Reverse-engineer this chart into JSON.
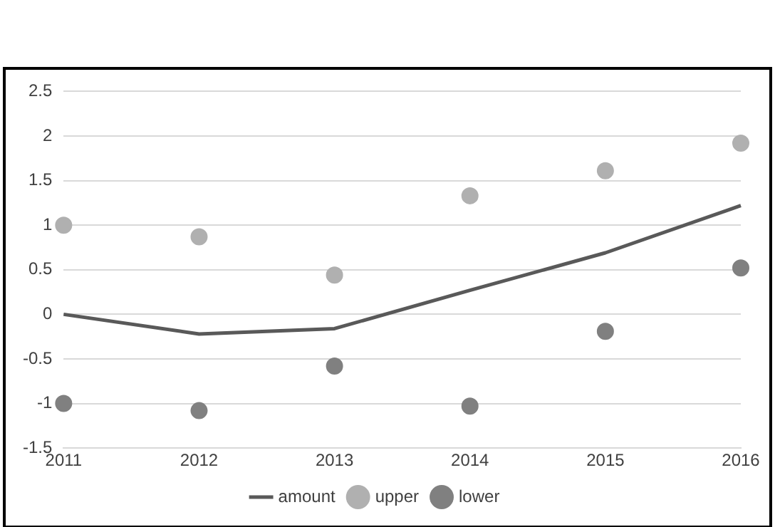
{
  "chart_data": {
    "type": "line",
    "categories": [
      "2011",
      "2012",
      "2013",
      "2014",
      "2015",
      "2016"
    ],
    "series": [
      {
        "name": "amount",
        "color": "#595959",
        "marker": "none",
        "values": [
          0,
          -0.22,
          -0.16,
          0.27,
          0.69,
          1.22
        ]
      },
      {
        "name": "upper",
        "type": "scatter",
        "color": "#b0b0b0",
        "marker": "circle",
        "values": [
          1.0,
          0.87,
          0.44,
          1.33,
          1.61,
          1.92
        ]
      },
      {
        "name": "lower",
        "type": "scatter",
        "color": "#808080",
        "marker": "circle",
        "values": [
          -1.0,
          -1.08,
          -0.58,
          -1.03,
          -0.19,
          0.52
        ]
      }
    ],
    "ylim": [
      -1.5,
      2.5
    ],
    "yticks": [
      -1.5,
      -1,
      -0.5,
      0,
      0.5,
      1,
      1.5,
      2,
      2.5
    ],
    "grid": "y",
    "legend": "bottom"
  }
}
